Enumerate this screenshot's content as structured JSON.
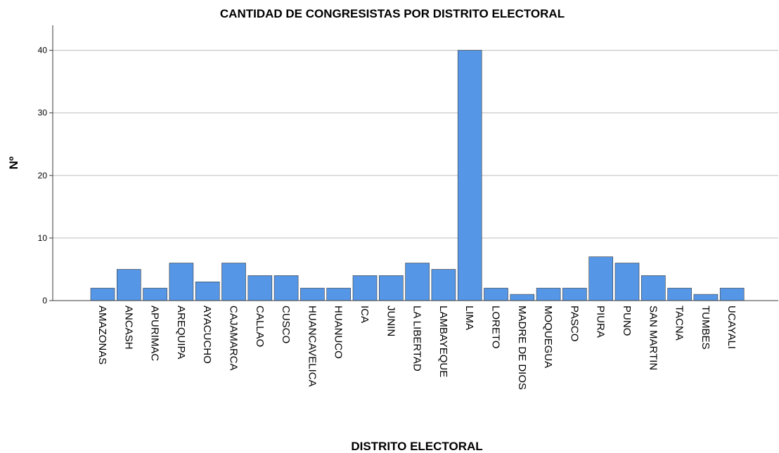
{
  "chart_data": {
    "type": "bar",
    "title": "CANTIDAD DE CONGRESISTAS POR DISTRITO ELECTORAL",
    "xlabel": "DISTRITO ELECTORAL",
    "ylabel": "Nº",
    "ylim": [
      0,
      44
    ],
    "yticks": [
      "0",
      "10",
      "20",
      "30",
      "40"
    ],
    "grid": "horizontal",
    "bar_color": "#5596E6",
    "categories": [
      "AMAZONAS",
      "ANCASH",
      "APURIMAC",
      "AREQUIPA",
      "AYACUCHO",
      "CAJAMARCA",
      "CALLAO",
      "CUSCO",
      "HUANCAVELICA",
      "HUANUCO",
      "ICA",
      "JUNIN",
      "LA LIBERTAD",
      "LAMBAYEQUE",
      "LIMA",
      "LORETO",
      "MADRE DE DIOS",
      "MOQUEGUA",
      "PASCO",
      "PIURA",
      "PUNO",
      "SAN MARTIN",
      "TACNA",
      "TUMBES",
      "UCAYALI"
    ],
    "values": [
      2,
      5,
      2,
      6,
      3,
      6,
      4,
      4,
      2,
      2,
      4,
      4,
      6,
      5,
      40,
      2,
      1,
      2,
      2,
      7,
      6,
      4,
      2,
      1,
      2
    ]
  }
}
